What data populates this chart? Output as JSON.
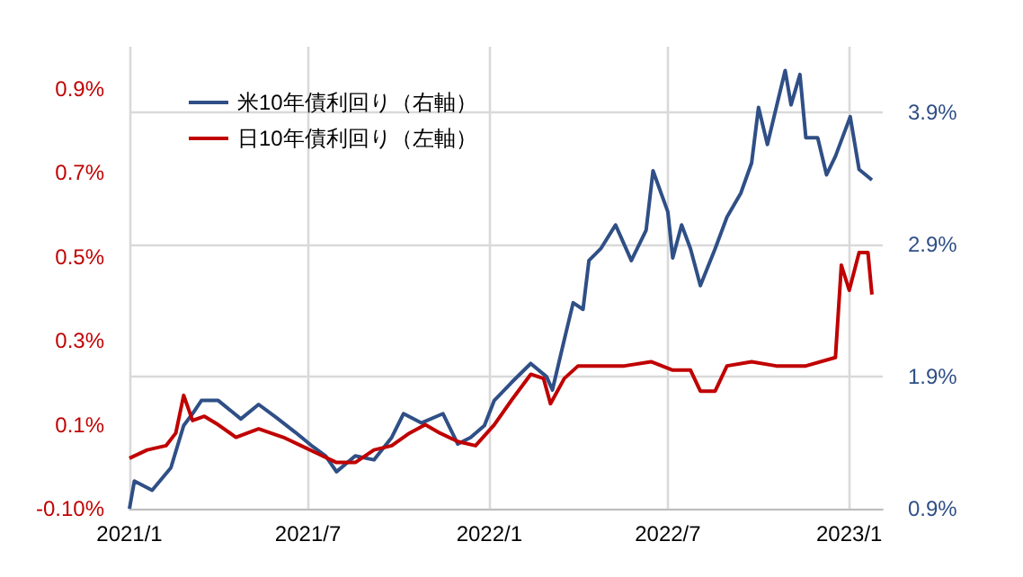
{
  "chart_data": {
    "type": "line",
    "marker": "none",
    "line_style": "solid",
    "grid": true,
    "legend": "top left",
    "xlim": [
      "2021-01-01",
      "2023-02-04"
    ],
    "xticks": [
      {
        "value": "2021-01-01",
        "label": "2021/1"
      },
      {
        "value": "2021-07-01",
        "label": "2021/7"
      },
      {
        "value": "2022-01-01",
        "label": "2022/1"
      },
      {
        "value": "2022-07-01",
        "label": "2022/7"
      },
      {
        "value": "2023-01-01",
        "label": "2023/1"
      }
    ],
    "ylim": [
      -0.1,
      1.0
    ],
    "yticks": [
      {
        "value": -0.1,
        "label": "-0.10%"
      },
      {
        "value": 0.1,
        "label": "0.1%"
      },
      {
        "value": 0.3,
        "label": "0.3%"
      },
      {
        "value": 0.5,
        "label": "0.5%"
      },
      {
        "value": 0.7,
        "label": "0.7%"
      },
      {
        "value": 0.9,
        "label": "0.9%"
      }
    ],
    "y2lim": [
      0.9,
      4.4
    ],
    "y2ticks": [
      {
        "value": 0.9,
        "label": "0.9%"
      },
      {
        "value": 1.9,
        "label": "1.9%"
      },
      {
        "value": 2.9,
        "label": "2.9%"
      },
      {
        "value": 3.9,
        "label": "3.9%"
      }
    ],
    "series": [
      {
        "name": "米10年債利回り（右軸）",
        "color": "#2f4f86",
        "axis": "y2",
        "x": [
          "2021-01-01",
          "2021-01-06",
          "2021-01-24",
          "2021-02-12",
          "2021-02-25",
          "2021-03-06",
          "2021-03-15",
          "2021-04-01",
          "2021-04-24",
          "2021-05-12",
          "2021-05-30",
          "2021-06-18",
          "2021-07-06",
          "2021-07-19",
          "2021-07-30",
          "2021-08-18",
          "2021-09-06",
          "2021-09-24",
          "2021-10-06",
          "2021-10-24",
          "2021-11-15",
          "2021-11-30",
          "2021-12-13",
          "2021-12-27",
          "2022-01-06",
          "2022-01-24",
          "2022-02-12",
          "2022-02-28",
          "2022-03-06",
          "2022-03-18",
          "2022-03-27",
          "2022-04-06",
          "2022-04-12",
          "2022-04-24",
          "2022-05-09",
          "2022-05-25",
          "2022-06-09",
          "2022-06-16",
          "2022-07-01",
          "2022-07-06",
          "2022-07-15",
          "2022-07-24",
          "2022-08-03",
          "2022-08-18",
          "2022-08-30",
          "2022-09-13",
          "2022-09-24",
          "2022-10-01",
          "2022-10-10",
          "2022-10-19",
          "2022-10-28",
          "2022-11-03",
          "2022-11-12",
          "2022-11-18",
          "2022-11-30",
          "2022-12-09",
          "2022-12-18",
          "2023-01-02",
          "2023-01-11",
          "2023-01-24"
        ],
        "values": [
          0.9,
          1.11,
          1.04,
          1.21,
          1.53,
          1.62,
          1.72,
          1.72,
          1.58,
          1.69,
          1.59,
          1.48,
          1.37,
          1.3,
          1.18,
          1.3,
          1.27,
          1.44,
          1.62,
          1.55,
          1.62,
          1.39,
          1.44,
          1.53,
          1.72,
          1.86,
          2.0,
          1.9,
          1.8,
          2.18,
          2.46,
          2.41,
          2.78,
          2.87,
          3.05,
          2.78,
          3.01,
          3.46,
          3.15,
          2.8,
          3.05,
          2.87,
          2.59,
          2.87,
          3.11,
          3.29,
          3.52,
          3.94,
          3.66,
          3.94,
          4.22,
          3.96,
          4.19,
          3.71,
          3.71,
          3.43,
          3.57,
          3.87,
          3.47,
          3.39
        ]
      },
      {
        "name": "日10年債利回り（左軸）",
        "color": "#c00000",
        "x": [
          "2021-01-01",
          "2021-01-19",
          "2021-02-07",
          "2021-02-17",
          "2021-02-25",
          "2021-03-06",
          "2021-03-18",
          "2021-04-01",
          "2021-04-19",
          "2021-05-12",
          "2021-06-06",
          "2021-06-24",
          "2021-07-12",
          "2021-07-30",
          "2021-08-18",
          "2021-09-06",
          "2021-09-24",
          "2021-10-12",
          "2021-10-28",
          "2021-11-12",
          "2021-11-30",
          "2021-12-18",
          "2022-01-06",
          "2022-01-24",
          "2022-02-12",
          "2022-02-25",
          "2022-03-04",
          "2022-03-18",
          "2022-04-01",
          "2022-04-19",
          "2022-05-18",
          "2022-06-14",
          "2022-07-06",
          "2022-07-24",
          "2022-08-03",
          "2022-08-18",
          "2022-08-30",
          "2022-09-24",
          "2022-10-19",
          "2022-11-18",
          "2022-12-18",
          "2022-12-24",
          "2023-01-01",
          "2023-01-11",
          "2023-01-20",
          "2023-01-24"
        ],
        "values": [
          0.02,
          0.04,
          0.05,
          0.08,
          0.17,
          0.11,
          0.12,
          0.1,
          0.07,
          0.09,
          0.07,
          0.05,
          0.03,
          0.01,
          0.01,
          0.04,
          0.05,
          0.08,
          0.1,
          0.08,
          0.06,
          0.05,
          0.1,
          0.16,
          0.22,
          0.21,
          0.15,
          0.21,
          0.24,
          0.24,
          0.24,
          0.25,
          0.23,
          0.23,
          0.18,
          0.18,
          0.24,
          0.25,
          0.24,
          0.24,
          0.26,
          0.48,
          0.42,
          0.51,
          0.51,
          0.41
        ]
      }
    ]
  }
}
